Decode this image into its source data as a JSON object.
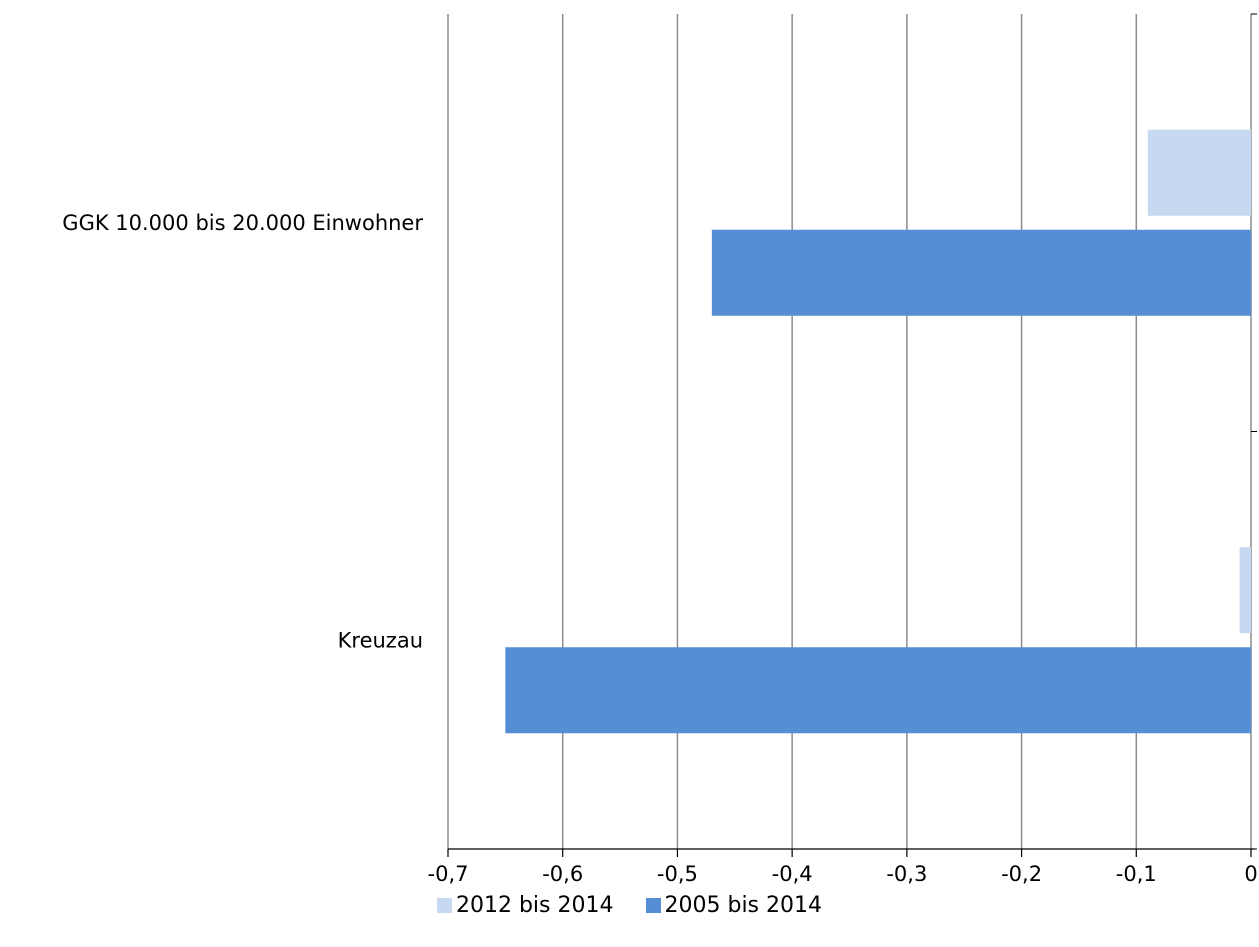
{
  "chart_data": {
    "type": "bar",
    "orientation": "horizontal",
    "categories": [
      "GGK 10.000 bis 20.000 Einwohner",
      "Kreuzau"
    ],
    "series": [
      {
        "name": "2012 bis 2014",
        "color": "#c6d9f1",
        "values": [
          -0.09,
          -0.01
        ]
      },
      {
        "name": "2005 bis 2014",
        "color": "#558ed5",
        "values": [
          -0.47,
          -0.65
        ]
      }
    ],
    "xlim": [
      -0.7,
      0
    ],
    "x_ticks": [
      -0.7,
      -0.6,
      -0.5,
      -0.4,
      -0.3,
      -0.2,
      -0.1,
      0
    ],
    "x_tick_labels": [
      "-0,7",
      "-0,6",
      "-0,5",
      "-0,4",
      "-0,3",
      "-0,2",
      "-0,1",
      "0"
    ],
    "grid": "vertical",
    "legend_position": "bottom"
  }
}
